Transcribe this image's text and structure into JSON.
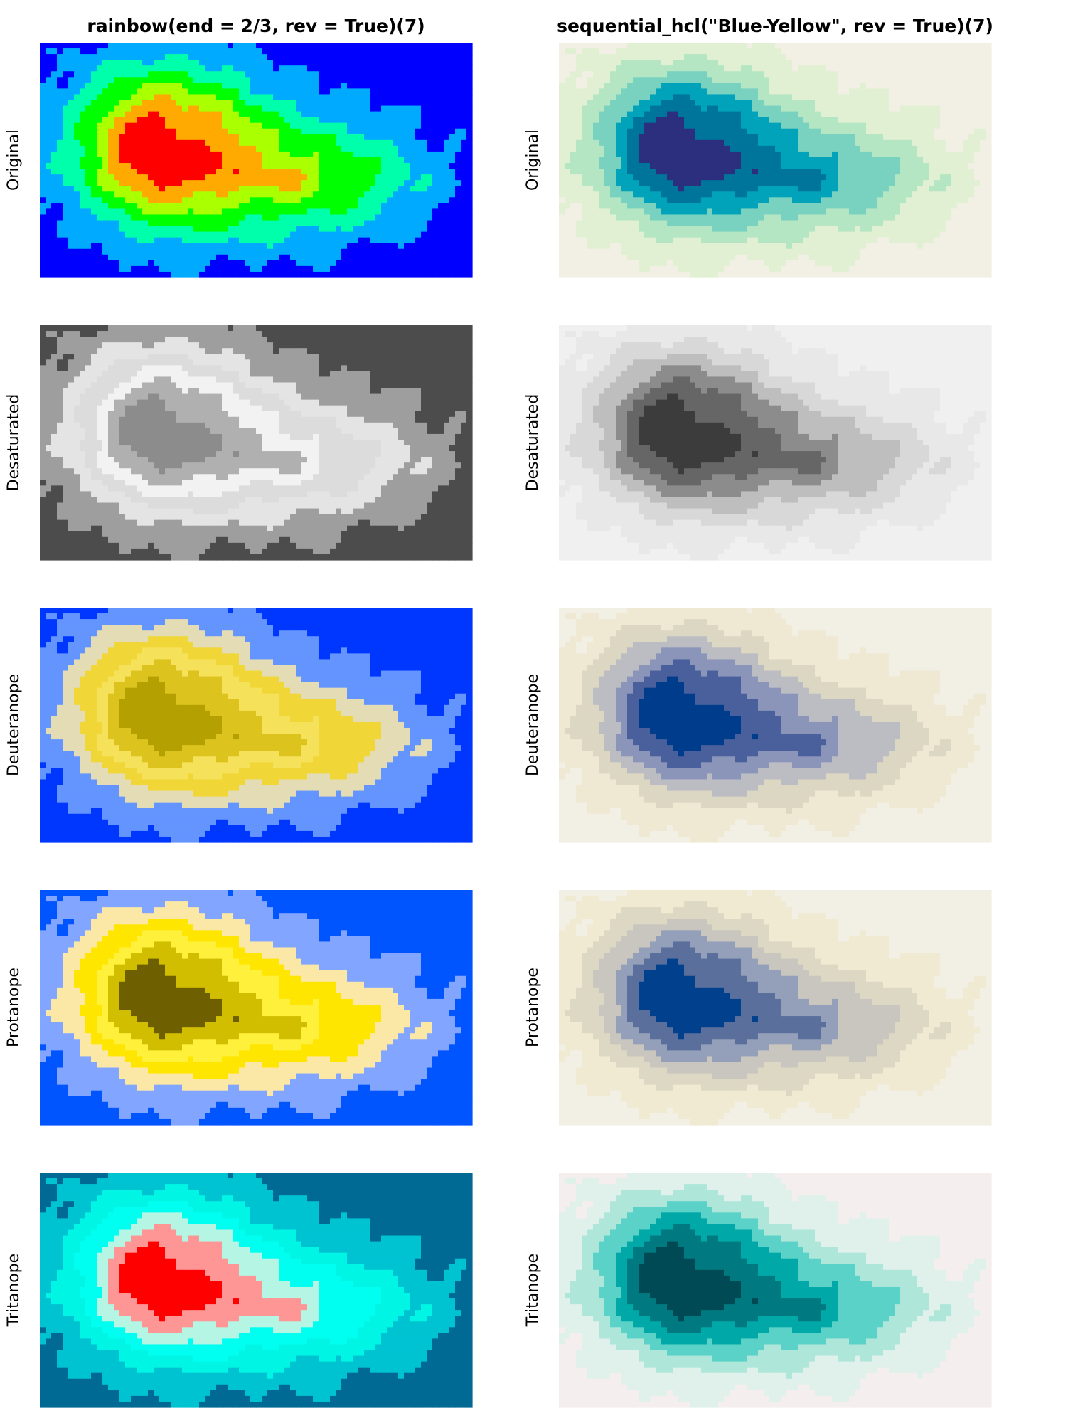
{
  "figure": {
    "columns": [
      {
        "title": "rainbow(end = 2/3, rev = True)(7)"
      },
      {
        "title": "sequential_hcl(\"Blue-Yellow\", rev = True)(7)"
      }
    ],
    "rows": [
      {
        "label": "Original"
      },
      {
        "label": "Desaturated"
      },
      {
        "label": "Deuteranope"
      },
      {
        "label": "Protanope"
      },
      {
        "label": "Tritanope"
      }
    ]
  },
  "chart_data": {
    "type": "heatmap",
    "description_levels": 7,
    "axes_visible": false,
    "palettes": [
      {
        "column": "rainbow(end = 2/3, rev = True)(7)",
        "Original": [
          "#0000ff",
          "#00aaff",
          "#00ffaa",
          "#00ff00",
          "#aaff00",
          "#ffaa00",
          "#ff0000"
        ],
        "Desaturated": [
          "#4c4c4c",
          "#9e9e9e",
          "#e4e4e4",
          "#dcdcdc",
          "#f2f2f2",
          "#b0b0b0",
          "#8c8c8c"
        ],
        "Deuteranope": [
          "#0037ff",
          "#6495ff",
          "#e4dcb4",
          "#f0d737",
          "#f5e15a",
          "#dcc31e",
          "#b4a000"
        ],
        "Protanope": [
          "#0055ff",
          "#82a5ff",
          "#fce8a6",
          "#ffe600",
          "#fff03c",
          "#d2be00",
          "#6e6000"
        ],
        "Tritanope": [
          "#006a94",
          "#00c3d2",
          "#00f5e4",
          "#00fff0",
          "#b4f5e4",
          "#ff9696",
          "#ff0000"
        ]
      },
      {
        "column": "sequential_hcl(\"Blue-Yellow\", rev = True)(7)",
        "Original": [
          "#f2f0e4",
          "#e1f0d2",
          "#b4e6c3",
          "#78d2bf",
          "#00a3b9",
          "#00759c",
          "#2c2e7e"
        ],
        "Desaturated": [
          "#f0f0f0",
          "#e8e8e8",
          "#d8d8d8",
          "#bebebe",
          "#8c8c8c",
          "#666666",
          "#3c3c3c"
        ],
        "Deuteranope": [
          "#f2efe4",
          "#efe8d2",
          "#dcd7c3",
          "#bcbcc3",
          "#8a95b9",
          "#4a609c",
          "#003c8c"
        ],
        "Protanope": [
          "#f2efe4",
          "#f0ead2",
          "#dcd8c3",
          "#c8c6bf",
          "#949fb9",
          "#5a6f9c",
          "#00408c"
        ],
        "Tritanope": [
          "#f5eeee",
          "#e0f0ea",
          "#aee6da",
          "#5ad2c8",
          "#00a8a8",
          "#007a80",
          "#004a55"
        ]
      }
    ]
  }
}
